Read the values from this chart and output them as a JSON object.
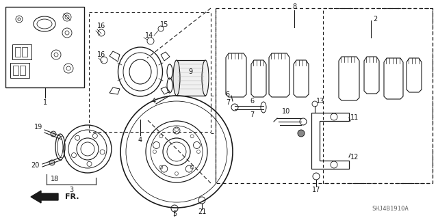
{
  "bg_color": "#ffffff",
  "line_color": "#1a1a1a",
  "fig_width": 6.4,
  "fig_height": 3.19,
  "dpi": 100,
  "watermark": "SHJ4B1910A",
  "part_label_fontsize": 7.0,
  "gray": "#888888",
  "darkgray": "#444444"
}
